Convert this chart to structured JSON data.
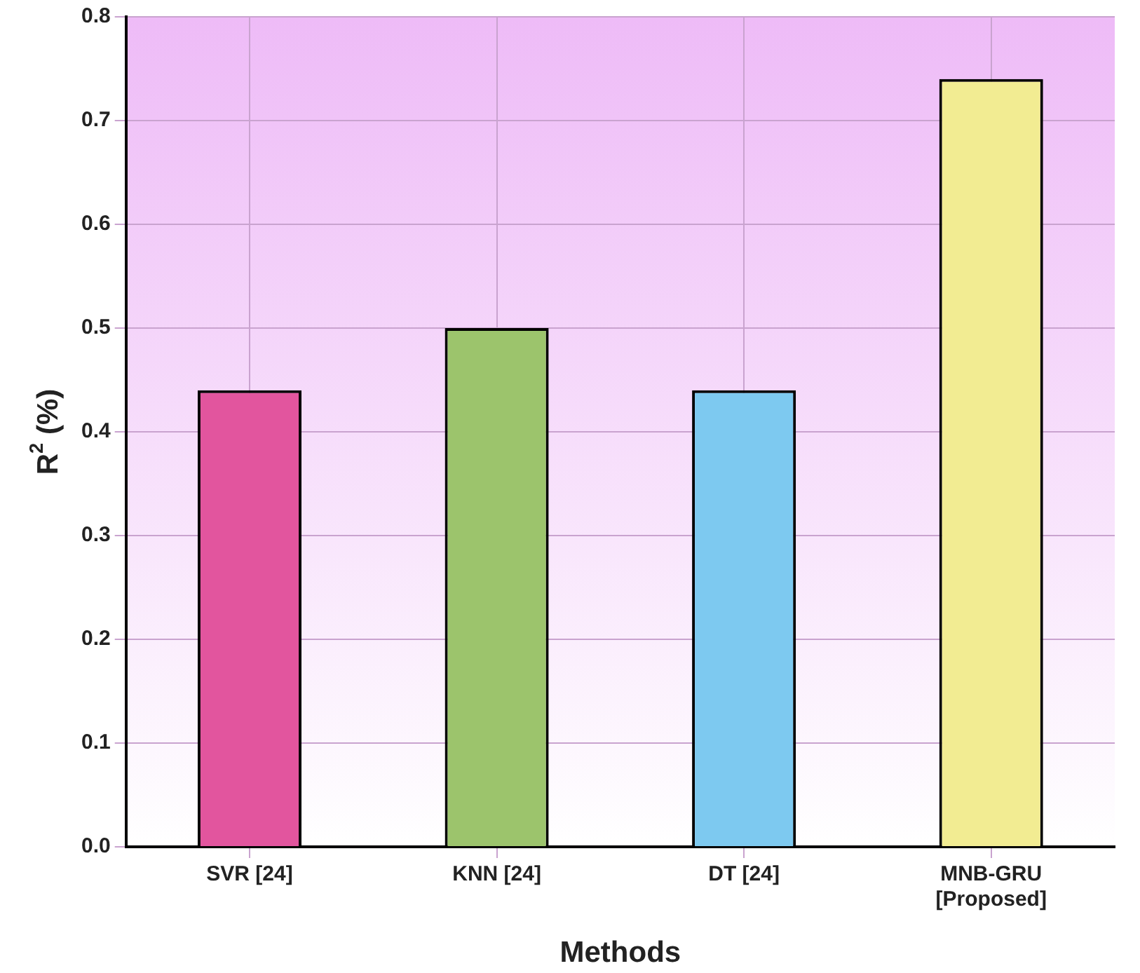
{
  "chart_data": {
    "type": "bar",
    "xlabel": "Methods",
    "ylabel": "R$^{2}$ (%)",
    "categories": [
      "SVR [24]",
      "KNN [24]",
      "DT [24]",
      "MNB-GRU\n[Proposed]"
    ],
    "values": [
      0.44,
      0.5,
      0.44,
      0.74
    ],
    "colors": [
      "#e2559e",
      "#9cc46c",
      "#7dc9f0",
      "#f2ec92"
    ],
    "ylim": [
      0,
      0.8
    ],
    "yticks": [
      {
        "value": 0,
        "label": "0.0"
      },
      0.1,
      0.2,
      0.3,
      0.4,
      0.5,
      0.6,
      0.7,
      0.8
    ],
    "grid": true,
    "legend": false
  }
}
